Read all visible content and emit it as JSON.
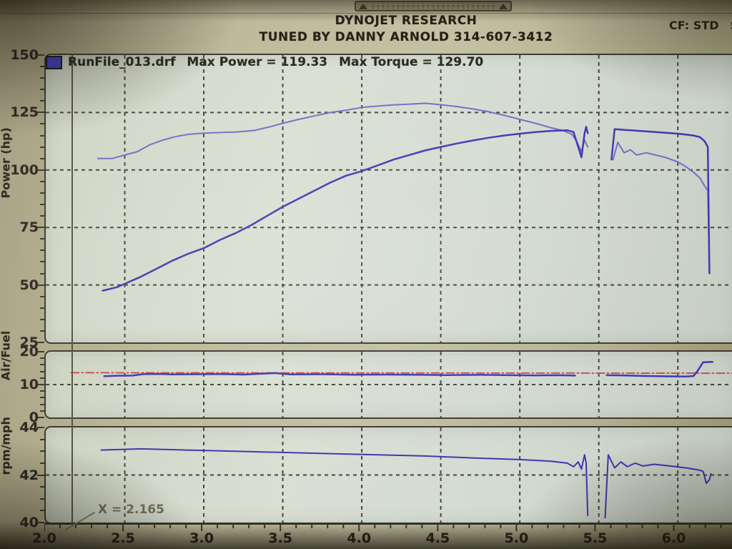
{
  "header": {
    "title": "DYNOJET RESEARCH",
    "subtitle": "TUNED BY DANNY ARNOLD 314-607-3412",
    "cf_label": "CF: STD",
    "cf_extra": "S"
  },
  "legend": {
    "file": "RunFile_013.drf",
    "max_power": "Max Power = 119.33",
    "max_torque": "Max Torque = 129.70",
    "swatch_color": "#423cc0"
  },
  "annotation": {
    "cursor_label": "X = 2.165",
    "cursor_x": 2.165
  },
  "colors": {
    "grid": "#45443a",
    "cursor": "#55533e",
    "power_blue": "#3d36b2",
    "torque_blue": "#716bc6",
    "afr_target_red": "#c84f4f"
  },
  "chart_data": [
    {
      "type": "line",
      "ylabel": "Power (hp)",
      "xlim": [
        2.0,
        6.37
      ],
      "ylim": [
        25,
        150
      ],
      "yticks": [
        {
          "v": 150,
          "label": "150"
        },
        {
          "v": 125,
          "label": "125"
        },
        {
          "v": 100,
          "label": "100"
        },
        {
          "v": 75,
          "label": "75"
        },
        {
          "v": 50,
          "label": "50"
        },
        {
          "v": 25,
          "label": "25"
        }
      ],
      "y_grid": [
        125,
        100,
        75,
        50
      ],
      "x_grid": [
        2.5,
        3.0,
        3.5,
        4.0,
        4.5,
        5.0,
        5.5,
        6.0
      ],
      "y_minor_step": 5,
      "grid_on": true,
      "series": [
        {
          "name": "torque",
          "color": "#716bc6",
          "width": 2,
          "points": [
            [
              2.33,
              105
            ],
            [
              2.42,
              105
            ],
            [
              2.5,
              106.5
            ],
            [
              2.58,
              108
            ],
            [
              2.66,
              111
            ],
            [
              2.74,
              113
            ],
            [
              2.82,
              114.5
            ],
            [
              2.9,
              115.5
            ],
            [
              3.0,
              116
            ],
            [
              3.1,
              116.3
            ],
            [
              3.2,
              116.5
            ],
            [
              3.32,
              117.2
            ],
            [
              3.42,
              118.8
            ],
            [
              3.5,
              120.3
            ],
            [
              3.6,
              122
            ],
            [
              3.7,
              123.5
            ],
            [
              3.8,
              125
            ],
            [
              3.9,
              126
            ],
            [
              4.0,
              127.2
            ],
            [
              4.1,
              127.8
            ],
            [
              4.2,
              128.3
            ],
            [
              4.3,
              128.6
            ],
            [
              4.4,
              129
            ],
            [
              4.5,
              128.4
            ],
            [
              4.6,
              127.6
            ],
            [
              4.7,
              126.6
            ],
            [
              4.8,
              125.4
            ],
            [
              4.9,
              123.8
            ],
            [
              5.0,
              122
            ],
            [
              5.1,
              120.3
            ],
            [
              5.2,
              118.3
            ],
            [
              5.28,
              117
            ],
            [
              5.33,
              115.5
            ],
            [
              5.36,
              112.5
            ],
            [
              5.39,
              108
            ],
            [
              5.41,
              113
            ],
            [
              5.43,
              110
            ],
            null,
            [
              5.59,
              104.5
            ],
            [
              5.62,
              112
            ],
            [
              5.66,
              107.5
            ],
            [
              5.7,
              108.8
            ],
            [
              5.74,
              106.5
            ],
            [
              5.8,
              107.5
            ],
            [
              5.86,
              106.5
            ],
            [
              5.92,
              105.5
            ],
            [
              6.0,
              103.5
            ],
            [
              6.05,
              101.5
            ],
            [
              6.1,
              99
            ],
            [
              6.14,
              96.5
            ],
            [
              6.17,
              93
            ],
            [
              6.19,
              91
            ],
            [
              6.2,
              57
            ]
          ]
        },
        {
          "name": "power",
          "color": "#3d36b2",
          "width": 2.5,
          "points": [
            [
              2.36,
              47.5
            ],
            [
              2.45,
              49
            ],
            [
              2.5,
              50.5
            ],
            [
              2.6,
              53.5
            ],
            [
              2.7,
              57
            ],
            [
              2.8,
              60.5
            ],
            [
              2.9,
              63.5
            ],
            [
              3.0,
              66
            ],
            [
              3.1,
              69.5
            ],
            [
              3.2,
              72.5
            ],
            [
              3.3,
              76
            ],
            [
              3.4,
              80
            ],
            [
              3.5,
              84
            ],
            [
              3.6,
              87.5
            ],
            [
              3.7,
              91
            ],
            [
              3.8,
              94.5
            ],
            [
              3.9,
              97.5
            ],
            [
              4.0,
              99.5
            ],
            [
              4.1,
              102
            ],
            [
              4.2,
              104.5
            ],
            [
              4.3,
              106.5
            ],
            [
              4.4,
              108.5
            ],
            [
              4.5,
              110
            ],
            [
              4.6,
              111.5
            ],
            [
              4.7,
              112.8
            ],
            [
              4.8,
              114
            ],
            [
              4.9,
              115
            ],
            [
              5.0,
              115.8
            ],
            [
              5.1,
              116.5
            ],
            [
              5.2,
              117
            ],
            [
              5.3,
              117.3
            ],
            [
              5.34,
              116.5
            ],
            [
              5.37,
              110
            ],
            [
              5.39,
              105.5
            ],
            [
              5.41,
              116
            ],
            [
              5.42,
              118.8
            ],
            [
              5.43,
              116
            ],
            null,
            [
              5.58,
              104.5
            ],
            [
              5.6,
              117.8
            ],
            [
              5.65,
              117.5
            ],
            [
              5.72,
              117.2
            ],
            [
              5.8,
              116.8
            ],
            [
              5.9,
              116.3
            ],
            [
              6.0,
              115.8
            ],
            [
              6.05,
              115.4
            ],
            [
              6.1,
              115
            ],
            [
              6.14,
              114.3
            ],
            [
              6.17,
              112.5
            ],
            [
              6.19,
              110
            ],
            [
              6.2,
              55
            ]
          ]
        }
      ]
    },
    {
      "type": "line",
      "ylabel": "Air/Fuel",
      "xlim": [
        2.0,
        6.37
      ],
      "ylim": [
        0,
        20
      ],
      "yticks": [
        {
          "v": 20,
          "label": "20"
        },
        {
          "v": 10,
          "label": "10"
        },
        {
          "v": 0,
          "label": "0"
        }
      ],
      "y_grid": [
        10
      ],
      "x_grid": [
        2.5,
        3.0,
        3.5,
        4.0,
        4.5,
        5.0,
        5.5,
        6.0
      ],
      "y_minor_step": 2,
      "grid_on": true,
      "series": [
        {
          "name": "afr-target",
          "color": "#c84f4f",
          "width": 2,
          "dash": "11 4 2 4",
          "points": [
            [
              2.16,
              13.6
            ],
            [
              6.37,
              13.45
            ]
          ]
        },
        {
          "name": "afr",
          "color": "#3d36b2",
          "width": 2.5,
          "points": [
            [
              2.37,
              12.55
            ],
            [
              2.45,
              12.7
            ],
            [
              2.55,
              12.75
            ],
            [
              2.62,
              13.2
            ],
            [
              2.72,
              13.25
            ],
            [
              2.8,
              13.1
            ],
            [
              2.95,
              13.15
            ],
            [
              3.1,
              13.2
            ],
            [
              3.25,
              13.05
            ],
            [
              3.45,
              13.5
            ],
            [
              3.55,
              13.1
            ],
            [
              3.75,
              13.15
            ],
            [
              3.95,
              13.0
            ],
            [
              4.15,
              13.05
            ],
            [
              4.35,
              13.0
            ],
            [
              4.55,
              12.9
            ],
            [
              4.75,
              12.95
            ],
            [
              4.95,
              12.85
            ],
            [
              5.1,
              12.8
            ],
            [
              5.25,
              12.85
            ],
            [
              5.35,
              12.75
            ],
            null,
            [
              5.55,
              12.85
            ],
            [
              5.65,
              12.8
            ],
            [
              5.8,
              12.6
            ],
            [
              5.95,
              12.5
            ],
            [
              6.05,
              12.45
            ],
            [
              6.1,
              12.6
            ],
            [
              6.13,
              14.5
            ],
            [
              6.16,
              16.8
            ],
            [
              6.22,
              16.9
            ]
          ]
        }
      ]
    },
    {
      "type": "line",
      "ylabel": "rpm/mph",
      "xlim": [
        2.0,
        6.37
      ],
      "ylim": [
        40,
        44
      ],
      "yticks": [
        {
          "v": 44,
          "label": "44"
        },
        {
          "v": 42,
          "label": "42"
        },
        {
          "v": 40,
          "label": "40"
        }
      ],
      "y_grid": [
        42
      ],
      "x_grid": [
        2.5,
        3.0,
        3.5,
        4.0,
        4.5,
        5.0,
        5.5,
        6.0
      ],
      "y_minor_step": 0.5,
      "grid_on": true,
      "xticks": [
        {
          "v": 2.0,
          "label": "2.0"
        },
        {
          "v": 2.5,
          "label": "2.5"
        },
        {
          "v": 3.0,
          "label": "3.0"
        },
        {
          "v": 3.5,
          "label": "3.5"
        },
        {
          "v": 4.0,
          "label": "4.0"
        },
        {
          "v": 4.5,
          "label": "4.5"
        },
        {
          "v": 5.0,
          "label": "5.0"
        },
        {
          "v": 5.5,
          "label": "5.5"
        },
        {
          "v": 6.0,
          "label": "6.0"
        }
      ],
      "x_minor_step": 0.1,
      "series": [
        {
          "name": "speed",
          "color": "#3d36b2",
          "width": 2,
          "points": [
            [
              2.35,
              43.05
            ],
            [
              2.6,
              43.1
            ],
            [
              2.9,
              43.05
            ],
            [
              3.2,
              43.0
            ],
            [
              3.5,
              42.95
            ],
            [
              3.8,
              42.9
            ],
            [
              4.1,
              42.85
            ],
            [
              4.4,
              42.8
            ],
            [
              4.7,
              42.72
            ],
            [
              5.0,
              42.65
            ],
            [
              5.2,
              42.58
            ],
            [
              5.3,
              42.5
            ],
            [
              5.34,
              42.35
            ],
            [
              5.37,
              42.55
            ],
            [
              5.39,
              42.25
            ],
            [
              5.41,
              42.85
            ],
            [
              5.42,
              42.5
            ],
            [
              5.43,
              40.3
            ],
            null,
            [
              5.54,
              40.2
            ],
            [
              5.56,
              42.85
            ],
            [
              5.6,
              42.3
            ],
            [
              5.64,
              42.55
            ],
            [
              5.68,
              42.35
            ],
            [
              5.73,
              42.5
            ],
            [
              5.78,
              42.38
            ],
            [
              5.85,
              42.45
            ],
            [
              5.95,
              42.38
            ],
            [
              6.05,
              42.3
            ],
            [
              6.1,
              42.25
            ],
            [
              6.14,
              42.2
            ],
            [
              6.16,
              42.15
            ],
            [
              6.17,
              41.9
            ],
            [
              6.18,
              41.65
            ],
            [
              6.2,
              41.8
            ],
            [
              6.21,
              42.05
            ]
          ]
        }
      ]
    }
  ]
}
